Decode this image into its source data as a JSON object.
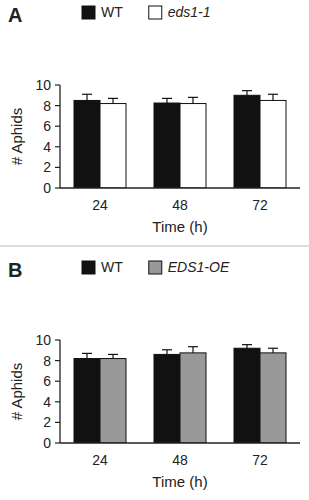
{
  "chart_data": [
    {
      "type": "bar",
      "title": "A",
      "x_label": "Time (h)",
      "y_label": "# Aphids",
      "categories": [
        "24",
        "48",
        "72"
      ],
      "series": [
        {
          "name": "WT",
          "color": "#111111",
          "values": [
            8.5,
            8.25,
            9.0
          ],
          "errors": [
            0.6,
            0.45,
            0.45
          ]
        },
        {
          "name": "eds1-1",
          "color": "#ffffff",
          "values": [
            8.2,
            8.2,
            8.5
          ],
          "errors": [
            0.5,
            0.6,
            0.6
          ]
        }
      ],
      "ylim": [
        0,
        10
      ],
      "yticks": [
        0,
        2,
        4,
        6,
        8,
        10
      ],
      "legend": "top"
    },
    {
      "type": "bar",
      "title": "B",
      "x_label": "Time (h)",
      "y_label": "# Aphids",
      "categories": [
        "24",
        "48",
        "72"
      ],
      "series": [
        {
          "name": "WT",
          "color": "#111111",
          "values": [
            8.2,
            8.6,
            9.2
          ],
          "errors": [
            0.5,
            0.45,
            0.35
          ]
        },
        {
          "name": "EDS1-OE",
          "color": "#999999",
          "values": [
            8.2,
            8.75,
            8.75
          ],
          "errors": [
            0.4,
            0.6,
            0.45
          ]
        }
      ],
      "ylim": [
        0,
        10
      ],
      "yticks": [
        0,
        2,
        4,
        6,
        8,
        10
      ],
      "legend": "top"
    }
  ]
}
